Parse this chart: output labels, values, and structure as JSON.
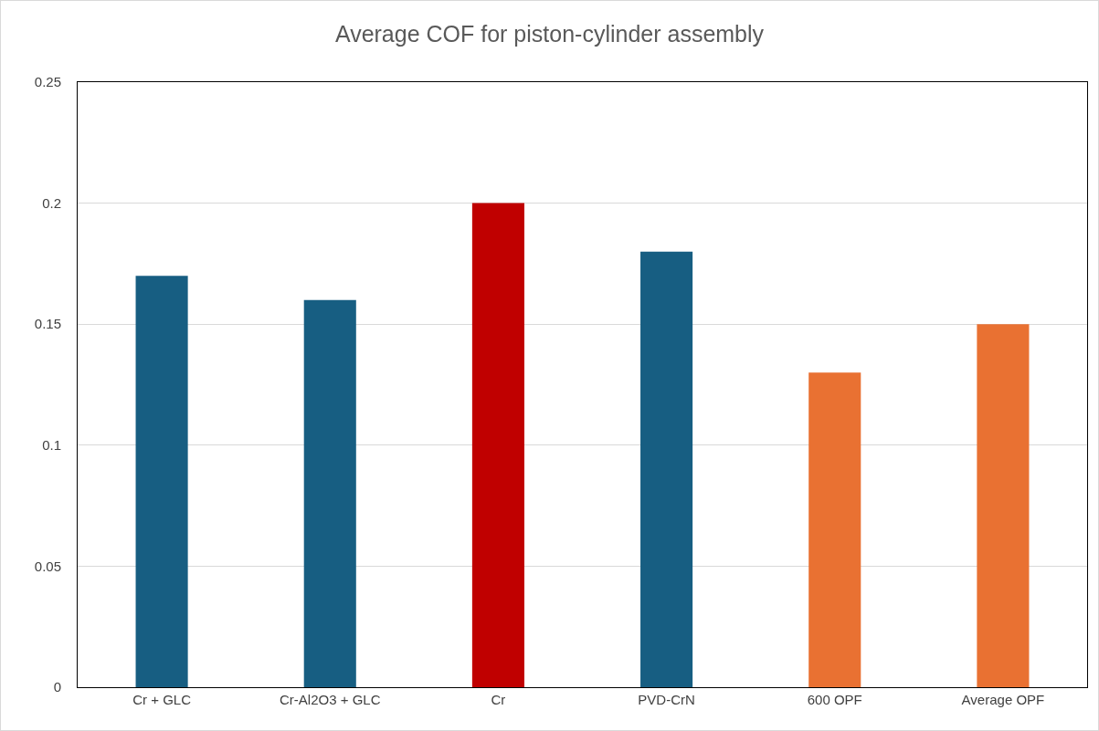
{
  "chart_data": {
    "type": "bar",
    "title": "Average COF for piston-cylinder assembly",
    "categories": [
      "Cr + GLC",
      "Cr-Al2O3 + GLC",
      "Cr",
      "PVD-CrN",
      "600 OPF",
      "Average OPF"
    ],
    "values": [
      0.17,
      0.16,
      0.2,
      0.18,
      0.13,
      0.15
    ],
    "colors": [
      "#175e82",
      "#175e82",
      "#c00000",
      "#175e82",
      "#e97132",
      "#e97132"
    ],
    "ylim": [
      0,
      0.25
    ],
    "yticks": [
      0,
      0.05,
      0.1,
      0.15,
      0.2,
      0.25
    ],
    "grid": "y"
  }
}
